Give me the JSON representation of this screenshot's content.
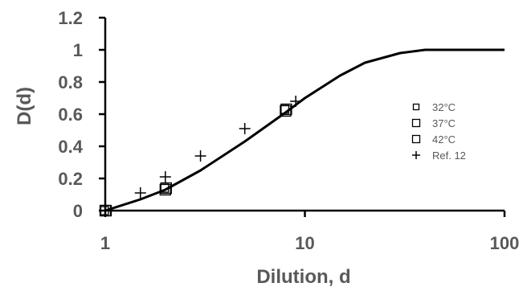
{
  "chart_data": {
    "type": "scatter",
    "xlabel": "Dilution, d",
    "ylabel": "D(d)",
    "xscale": "log",
    "xlim": [
      1,
      100
    ],
    "ylim": [
      0,
      1.2
    ],
    "x_ticks": [
      "1",
      "10",
      "100"
    ],
    "y_ticks": [
      "0",
      "0.2",
      "0.4",
      "0.6",
      "0.8",
      "1",
      "1.2"
    ],
    "grid": false,
    "legend_position": "right",
    "series": [
      {
        "name": "32°C",
        "marker": "square-small",
        "points": [
          [
            1,
            0.0
          ],
          [
            2,
            0.14
          ],
          [
            8,
            0.63
          ]
        ]
      },
      {
        "name": "37°C",
        "marker": "square",
        "points": [
          [
            1,
            0.0
          ],
          [
            2,
            0.13
          ],
          [
            8,
            0.62
          ]
        ]
      },
      {
        "name": "42°C",
        "marker": "square",
        "points": [
          [
            1,
            0.0
          ],
          [
            2,
            0.14
          ],
          [
            8,
            0.63
          ]
        ]
      },
      {
        "name": "Ref. 12",
        "marker": "plus",
        "points": [
          [
            1.5,
            0.11
          ],
          [
            2,
            0.21
          ],
          [
            3,
            0.34
          ],
          [
            5,
            0.51
          ],
          [
            9,
            0.68
          ]
        ]
      }
    ],
    "fit_curve": {
      "type": "line",
      "points": [
        [
          1,
          0.0
        ],
        [
          1.5,
          0.07
        ],
        [
          2,
          0.13
        ],
        [
          3,
          0.25
        ],
        [
          5,
          0.43
        ],
        [
          8,
          0.61
        ],
        [
          10,
          0.7
        ],
        [
          15,
          0.84
        ],
        [
          20,
          0.92
        ],
        [
          30,
          0.98
        ],
        [
          40,
          1.0
        ],
        [
          60,
          1.0
        ],
        [
          100,
          1.0
        ]
      ]
    }
  }
}
